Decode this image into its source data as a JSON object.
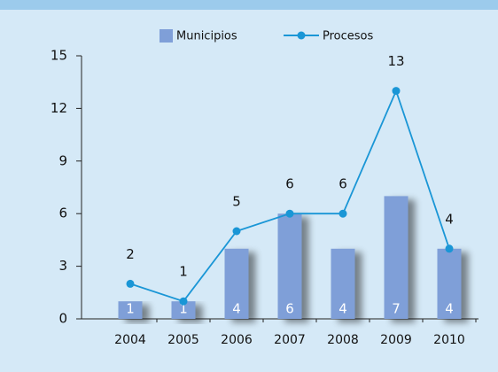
{
  "chart_data": {
    "type": "bar",
    "categories": [
      "2004",
      "2005",
      "2006",
      "2007",
      "2008",
      "2009",
      "2010"
    ],
    "series": [
      {
        "name": "Municipios",
        "type": "bar",
        "color": "#7f9fd8",
        "values": [
          1,
          1,
          4,
          6,
          4,
          7,
          4
        ]
      },
      {
        "name": "Procesos",
        "type": "line",
        "color": "#1a96d6",
        "values": [
          2,
          1,
          5,
          6,
          6,
          13,
          4
        ]
      }
    ],
    "ylim": [
      0,
      15
    ],
    "yticks": [
      0,
      3,
      6,
      9,
      12,
      15
    ],
    "grid": false,
    "legend": "top"
  }
}
